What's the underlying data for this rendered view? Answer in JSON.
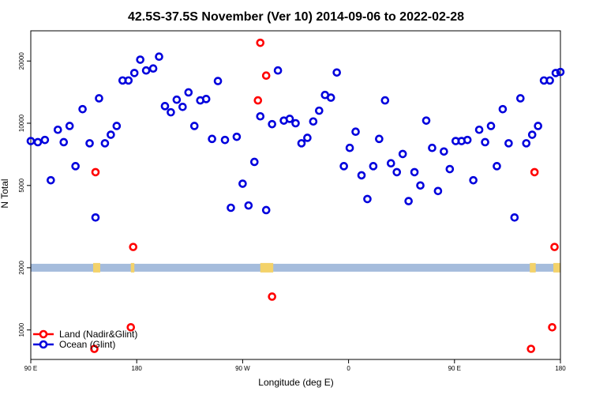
{
  "chart_data": {
    "type": "scatter",
    "title": "42.5S-37.5S November (Ver 10)   2014-09-06 to 2022-02-28",
    "xlabel": "Longitude (deg E)",
    "ylabel": "N Total",
    "xscale": "linear",
    "yscale": "log",
    "xlim": [
      90,
      540
    ],
    "ylim": [
      720,
      28000
    ],
    "x_ticks": [
      {
        "value": 90,
        "label": "90 E"
      },
      {
        "value": 180,
        "label": "180"
      },
      {
        "value": 270,
        "label": "90 W"
      },
      {
        "value": 360,
        "label": "0"
      },
      {
        "value": 450,
        "label": "90 E"
      },
      {
        "value": 540,
        "label": "180"
      }
    ],
    "y_ticks": [
      {
        "value": 1000,
        "label": "1000"
      },
      {
        "value": 2000,
        "label": "2000"
      },
      {
        "value": 5000,
        "label": "5000"
      },
      {
        "value": 10000,
        "label": "10000"
      },
      {
        "value": 20000,
        "label": "20000"
      }
    ],
    "grid": false,
    "legend_position": "bottom-left",
    "land_mask_level": 2000,
    "land_mask_color": "#f3d26a",
    "ocean_mask_color": "#a5bcdc",
    "land_mask_spans": [
      [
        143,
        149
      ],
      [
        175,
        178
      ],
      [
        285,
        296
      ],
      [
        514,
        519
      ],
      [
        534,
        540
      ]
    ],
    "series": [
      {
        "name": "Land (Nadir&Glint)",
        "color": "#ff0000",
        "x": [
          144,
          145,
          175,
          177,
          283,
          285,
          290,
          295,
          515,
          518,
          533,
          535
        ],
        "y": [
          810,
          5800,
          1030,
          2520,
          12900,
          24500,
          17000,
          1450,
          810,
          5800,
          1030,
          2520
        ]
      },
      {
        "name": "Ocean (Glint)",
        "color": "#0000dd",
        "x": [
          90,
          96,
          102,
          107,
          113,
          118,
          123,
          128,
          134,
          140,
          145,
          148,
          153,
          158,
          163,
          168,
          173,
          178,
          183,
          188,
          194,
          199,
          204,
          209,
          214,
          219,
          224,
          229,
          234,
          239,
          244,
          249,
          255,
          260,
          265,
          270,
          275,
          280,
          285,
          290,
          295,
          300,
          305,
          310,
          315,
          320,
          325,
          330,
          335,
          340,
          345,
          350,
          356,
          361,
          366,
          371,
          376,
          381,
          386,
          391,
          396,
          401,
          406,
          411,
          416,
          421,
          426,
          431,
          436,
          441,
          446,
          451,
          456,
          461,
          466,
          471,
          476,
          481,
          486,
          491,
          496,
          501,
          506,
          511,
          516,
          521,
          526,
          531,
          536,
          540
        ],
        "y": [
          8200,
          8100,
          8300,
          5300,
          9300,
          8100,
          9700,
          6200,
          11700,
          8000,
          3500,
          13200,
          8000,
          8800,
          9700,
          16100,
          16100,
          17500,
          20300,
          18000,
          18400,
          21000,
          12100,
          11300,
          13000,
          12000,
          14100,
          9700,
          12900,
          13100,
          8400,
          16000,
          8300,
          3900,
          8600,
          5100,
          4000,
          6500,
          10800,
          3800,
          9900,
          18000,
          10300,
          10500,
          10000,
          8000,
          8500,
          10200,
          11500,
          13700,
          13300,
          17600,
          6200,
          7600,
          9100,
          5600,
          4300,
          6200,
          8400,
          12900,
          6400,
          5800,
          7100,
          4200,
          5800,
          5000,
          10300,
          7600,
          4700,
          7300,
          6000,
          8200,
          8200,
          8300,
          5300,
          9300,
          8100,
          9700,
          6200,
          11700,
          8000,
          3500,
          13200,
          8000,
          8800,
          9700,
          16100,
          16100,
          17500,
          17700
        ]
      }
    ]
  }
}
